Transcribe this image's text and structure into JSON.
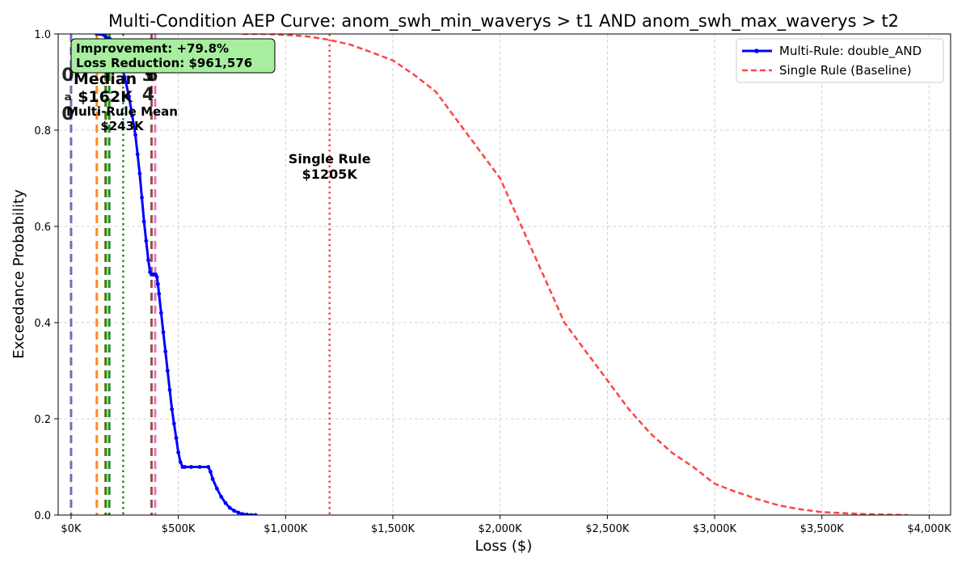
{
  "chart_data": {
    "type": "line",
    "title": "Multi-Condition AEP Curve: anom_swh_min_waverys > t1 AND anom_swh_max_waverys > t2",
    "xlabel": "Loss ($)",
    "ylabel": "Exceedance Probability",
    "xlim": [
      -60000,
      4100000
    ],
    "ylim": [
      0,
      1
    ],
    "x_ticks": [
      0,
      500000,
      1000000,
      1500000,
      2000000,
      2500000,
      3000000,
      3500000,
      4000000
    ],
    "x_tick_labels": [
      "$0K",
      "$500K",
      "$1,000K",
      "$1,500K",
      "$2,000K",
      "$2,500K",
      "$3,000K",
      "$3,500K",
      "$4,000K"
    ],
    "y_ticks": [
      0.0,
      0.2,
      0.4,
      0.6,
      0.8,
      1.0
    ],
    "y_tick_labels": [
      "0.0",
      "0.2",
      "0.4",
      "0.6",
      "0.8",
      "1.0"
    ],
    "grid": true,
    "legend_position": "top-right",
    "series": [
      {
        "name": "Multi-Rule: double_AND",
        "color": "#0000ff",
        "style": "solid-markers",
        "x": [
          120000,
          135000,
          160000,
          180000,
          195000,
          210000,
          230000,
          250000,
          270000,
          285000,
          300000,
          310000,
          320000,
          330000,
          340000,
          350000,
          360000,
          368000,
          375000,
          380000,
          385000,
          390000,
          395000,
          400000,
          405000,
          410000,
          420000,
          430000,
          440000,
          450000,
          460000,
          470000,
          480000,
          490000,
          500000,
          510000,
          520000,
          530000,
          560000,
          600000,
          640000,
          650000,
          660000,
          680000,
          700000,
          720000,
          740000,
          760000,
          780000,
          800000,
          820000,
          840000,
          860000
        ],
        "y": [
          1.0,
          1.0,
          0.995,
          0.99,
          0.98,
          0.965,
          0.94,
          0.91,
          0.87,
          0.83,
          0.79,
          0.75,
          0.71,
          0.66,
          0.61,
          0.57,
          0.53,
          0.505,
          0.5,
          0.5,
          0.5,
          0.5,
          0.5,
          0.495,
          0.48,
          0.46,
          0.42,
          0.38,
          0.34,
          0.3,
          0.26,
          0.22,
          0.19,
          0.16,
          0.13,
          0.11,
          0.1,
          0.1,
          0.1,
          0.1,
          0.1,
          0.09,
          0.075,
          0.055,
          0.038,
          0.025,
          0.015,
          0.009,
          0.005,
          0.002,
          0.001,
          0.0,
          0.0
        ]
      },
      {
        "name": "Single Rule (Baseline)",
        "color": "#ff4444",
        "style": "dashed",
        "x": [
          800000,
          900000,
          1000000,
          1100000,
          1200000,
          1300000,
          1400000,
          1500000,
          1600000,
          1700000,
          1800000,
          1900000,
          2000000,
          2100000,
          2200000,
          2300000,
          2400000,
          2500000,
          2600000,
          2700000,
          2800000,
          2900000,
          3000000,
          3100000,
          3200000,
          3300000,
          3400000,
          3500000,
          3600000,
          3700000,
          3800000,
          3900000
        ],
        "y": [
          1.0,
          1.0,
          0.998,
          0.995,
          0.988,
          0.978,
          0.962,
          0.945,
          0.915,
          0.88,
          0.82,
          0.76,
          0.7,
          0.6,
          0.5,
          0.4,
          0.34,
          0.28,
          0.22,
          0.17,
          0.13,
          0.1,
          0.065,
          0.048,
          0.033,
          0.02,
          0.012,
          0.006,
          0.004,
          0.002,
          0.001,
          0.0
        ]
      }
    ],
    "vertical_lines": [
      {
        "x": 0,
        "color": "#7b68b8",
        "style": "dashed",
        "label": [
          "0",
          "ₐ",
          "0"
        ],
        "label_color": "#7b68b8"
      },
      {
        "x": 120000,
        "color": "#ff8c1a",
        "style": "dashed",
        "label": [],
        "label_color": "#ff8c1a"
      },
      {
        "x": 160000,
        "color": "#ff8c1a",
        "style": "dashed",
        "label": [],
        "label_color": "#ff8c1a"
      },
      {
        "x": 162000,
        "color": "#228b22",
        "style": "dashed",
        "label": [
          "Median",
          "$162K"
        ],
        "label_color": "#228b22"
      },
      {
        "x": 178000,
        "color": "#228b22",
        "style": "dashed",
        "label": [],
        "label_color": "#228b22"
      },
      {
        "x": 243000,
        "color": "#228b22",
        "style": "dotted",
        "label": [
          "Multi-Rule Mean",
          "$243K"
        ],
        "label_color": "#228b22"
      },
      {
        "x": 375000,
        "color": "#8c564b",
        "style": "dashed",
        "label": [
          "3",
          "4"
        ],
        "label_color": "#8c564b"
      },
      {
        "x": 392000,
        "color": "#e377c2",
        "style": "dashed",
        "label": [
          "6"
        ],
        "label_color": "#e377c2"
      },
      {
        "x": 1205000,
        "color": "#ff4444",
        "style": "dotted",
        "label": [
          "Single Rule",
          "$1205K"
        ],
        "label_color": "#ff0000"
      }
    ],
    "annotation_box": {
      "line1": "Improvement: +79.8%",
      "line2": "Loss Reduction: $961,576",
      "background": "#a7ee9e"
    }
  }
}
